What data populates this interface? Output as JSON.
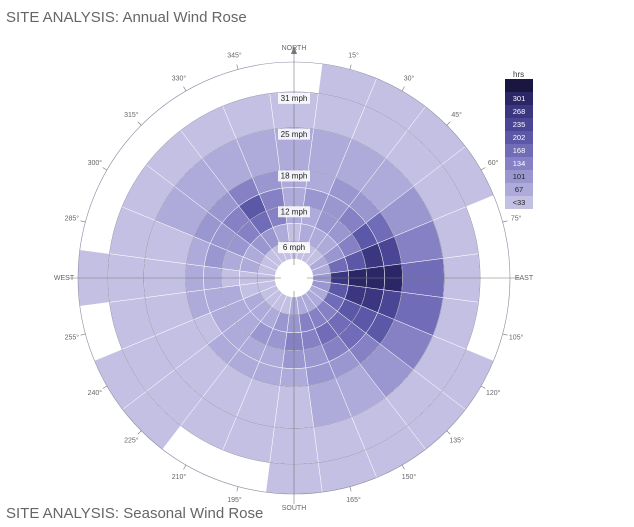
{
  "page": {
    "title": "SITE ANALYSIS: Annual Wind Rose",
    "next_section_title": "SITE ANALYSIS: Seasonal Wind Rose"
  },
  "chart_data": {
    "type": "heatmap",
    "subtype": "polar wind rose",
    "title": "SITE ANALYSIS: Annual Wind Rose",
    "angle_unit": "degrees",
    "direction_step": 15,
    "cardinal_labels": {
      "0": "NORTH",
      "90": "EAST",
      "180": "SOUTH",
      "270": "WEST"
    },
    "degree_labels": [
      "15°",
      "30°",
      "45°",
      "60°",
      "75°",
      "105°",
      "120°",
      "135°",
      "150°",
      "165°",
      "195°",
      "210°",
      "225°",
      "240°",
      "255°",
      "285°",
      "300°",
      "315°",
      "330°",
      "345°"
    ],
    "degree_label_values": [
      15,
      30,
      45,
      60,
      75,
      105,
      120,
      135,
      150,
      165,
      195,
      210,
      225,
      240,
      255,
      285,
      300,
      315,
      330,
      345
    ],
    "speed_unit": "mph",
    "speed_rings": [
      6,
      12,
      18,
      25,
      31
    ],
    "speed_ring_labels": [
      "6 mph",
      "12 mph",
      "18 mph",
      "25 mph",
      "31 mph"
    ],
    "speed_bins": [
      [
        3,
        6
      ],
      [
        6,
        9
      ],
      [
        9,
        12
      ],
      [
        12,
        15
      ],
      [
        15,
        18
      ],
      [
        18,
        25
      ],
      [
        25,
        31
      ],
      [
        31,
        36
      ]
    ],
    "legend": {
      "title": "hrs",
      "labels": [
        "",
        "301",
        "268",
        "235",
        "202",
        "168",
        "134",
        "101",
        "67",
        "<33"
      ],
      "colors": [
        "#1a1640",
        "#2b2767",
        "#3a3680",
        "#4a4695",
        "#5c58a8",
        "#706cb8",
        "#8581c4",
        "#9a96d0",
        "#aeaada",
        "#c3c0e4"
      ],
      "placement": "right"
    },
    "directions": [
      0,
      15,
      30,
      45,
      60,
      75,
      90,
      105,
      120,
      135,
      150,
      165,
      180,
      195,
      210,
      225,
      240,
      255,
      270,
      285,
      300,
      315,
      330,
      345
    ],
    "values_level": [
      [
        9,
        9,
        8,
        8,
        8,
        8,
        9,
        null
      ],
      [
        9,
        8,
        8,
        7,
        8,
        8,
        9,
        9
      ],
      [
        9,
        8,
        7,
        7,
        7,
        8,
        9,
        9
      ],
      [
        9,
        8,
        7,
        6,
        7,
        8,
        9,
        9
      ],
      [
        8,
        7,
        6,
        4,
        5,
        7,
        9,
        9
      ],
      [
        8,
        5,
        4,
        2,
        3,
        6,
        9,
        null
      ],
      [
        7,
        2,
        1,
        1,
        1,
        5,
        9,
        null
      ],
      [
        7,
        4,
        2,
        2,
        3,
        5,
        9,
        null
      ],
      [
        8,
        5,
        4,
        4,
        4,
        6,
        9,
        9
      ],
      [
        8,
        6,
        5,
        5,
        6,
        7,
        9,
        9
      ],
      [
        8,
        6,
        5,
        6,
        7,
        8,
        9,
        9
      ],
      [
        8,
        6,
        6,
        7,
        7,
        8,
        9,
        9
      ],
      [
        8,
        7,
        6,
        7,
        8,
        9,
        9,
        9
      ],
      [
        9,
        7,
        7,
        8,
        8,
        9,
        9,
        null
      ],
      [
        9,
        8,
        7,
        8,
        8,
        9,
        9,
        null
      ],
      [
        9,
        8,
        8,
        8,
        8,
        9,
        9,
        9
      ],
      [
        9,
        8,
        8,
        8,
        9,
        9,
        9,
        9
      ],
      [
        9,
        9,
        8,
        8,
        8,
        9,
        9,
        null
      ],
      [
        9,
        9,
        9,
        8,
        8,
        9,
        9,
        9
      ],
      [
        9,
        8,
        8,
        7,
        8,
        9,
        9,
        null
      ],
      [
        9,
        8,
        7,
        7,
        7,
        8,
        9,
        null
      ],
      [
        9,
        7,
        6,
        6,
        7,
        8,
        9,
        null
      ],
      [
        9,
        7,
        5,
        4,
        6,
        8,
        9,
        null
      ],
      [
        9,
        8,
        6,
        6,
        7,
        8,
        9,
        null
      ]
    ],
    "grid": true
  }
}
